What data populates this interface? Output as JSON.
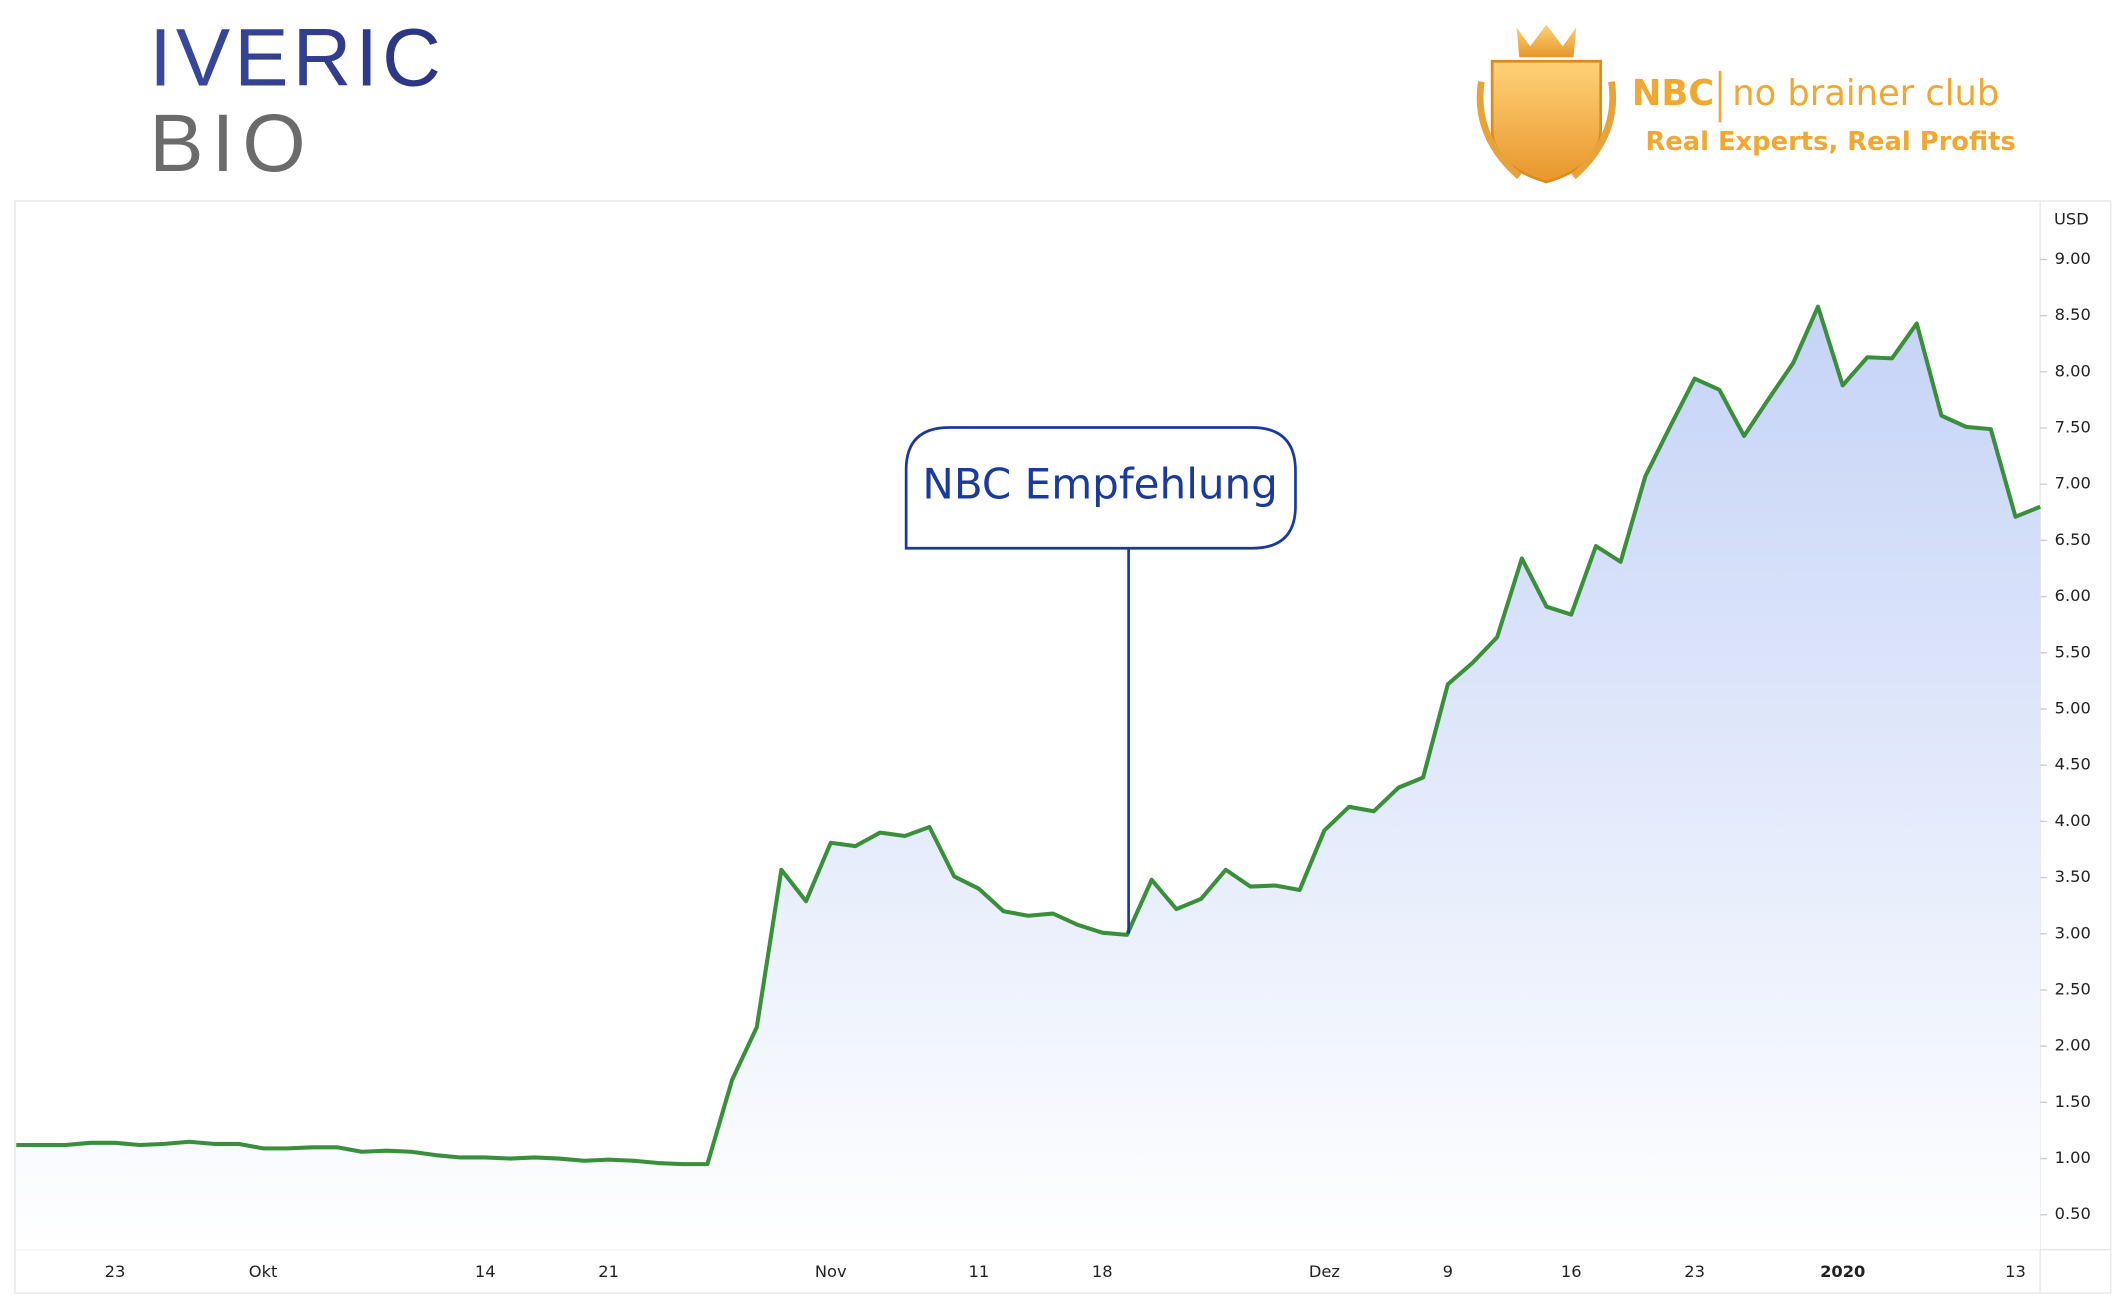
{
  "header": {
    "company_top": "IVERIC",
    "company_bottom": "BIO",
    "brand_short": "NBC",
    "brand_name": "no brainer club",
    "tagline": "Real Experts, Real Profits"
  },
  "chart_data": {
    "type": "line",
    "y_label": "USD",
    "annotation": "NBC Empfehlung",
    "color": "#3a8f3a",
    "categories": [
      null,
      null,
      null,
      null,
      "23",
      null,
      null,
      null,
      null,
      null,
      "Okt",
      null,
      null,
      null,
      null,
      null,
      null,
      null,
      null,
      "14",
      null,
      null,
      null,
      null,
      "21",
      null,
      null,
      null,
      null,
      null,
      null,
      null,
      null,
      "Nov",
      null,
      null,
      null,
      null,
      null,
      "11",
      null,
      null,
      null,
      null,
      "18",
      null,
      null,
      null,
      null,
      null,
      null,
      null,
      null,
      "Dez",
      null,
      null,
      null,
      null,
      "9",
      null,
      null,
      null,
      null,
      "16",
      null,
      null,
      null,
      null,
      "23",
      null,
      null,
      null,
      null,
      null,
      "2020",
      null,
      null,
      null,
      null,
      null,
      null,
      "13",
      null
    ],
    "values": [
      1.12,
      1.12,
      1.12,
      1.14,
      1.14,
      1.12,
      1.13,
      1.15,
      1.13,
      1.13,
      1.09,
      1.09,
      1.1,
      1.1,
      1.06,
      1.07,
      1.06,
      1.03,
      1.01,
      1.01,
      1.0,
      1.01,
      1.0,
      0.98,
      0.99,
      0.98,
      0.96,
      0.95,
      0.95,
      1.7,
      2.17,
      3.57,
      3.29,
      3.81,
      3.78,
      3.9,
      3.87,
      3.95,
      3.51,
      3.4,
      3.2,
      3.16,
      3.18,
      3.08,
      3.01,
      2.99,
      3.48,
      3.22,
      3.31,
      3.57,
      3.42,
      3.43,
      3.39,
      3.92,
      4.13,
      4.09,
      4.3,
      4.39,
      5.22,
      5.41,
      5.64,
      6.34,
      5.91,
      5.84,
      6.45,
      6.31,
      7.07,
      7.51,
      7.94,
      7.84,
      7.43,
      7.76,
      8.08,
      8.58,
      7.88,
      8.13,
      8.12,
      8.43,
      7.61,
      7.51,
      7.49,
      6.71,
      6.8
    ],
    "ylim": [
      0.19,
      9.52
    ],
    "yticks": [
      {
        "value": 0.5,
        "label": "0.50"
      },
      {
        "value": 1,
        "label": "1.00"
      },
      {
        "value": 1.5,
        "label": "1.50"
      },
      {
        "value": 2,
        "label": "2.00"
      },
      {
        "value": 2.5,
        "label": "2.50"
      },
      {
        "value": 3,
        "label": "3.00"
      },
      {
        "value": 3.5,
        "label": "3.50"
      },
      {
        "value": 4,
        "label": "4.00"
      },
      {
        "value": 4.5,
        "label": "4.50"
      },
      {
        "value": 5,
        "label": "5.00"
      },
      {
        "value": 5.5,
        "label": "5.50"
      },
      {
        "value": 6,
        "label": "6.00"
      },
      {
        "value": 6.5,
        "label": "6.50"
      },
      {
        "value": 7,
        "label": "7.00"
      },
      {
        "value": 7.5,
        "label": "7.50"
      },
      {
        "value": 8,
        "label": "8.00"
      },
      {
        "value": 8.5,
        "label": "8.50"
      },
      {
        "value": 9,
        "label": "9.00"
      }
    ],
    "grid": false
  }
}
